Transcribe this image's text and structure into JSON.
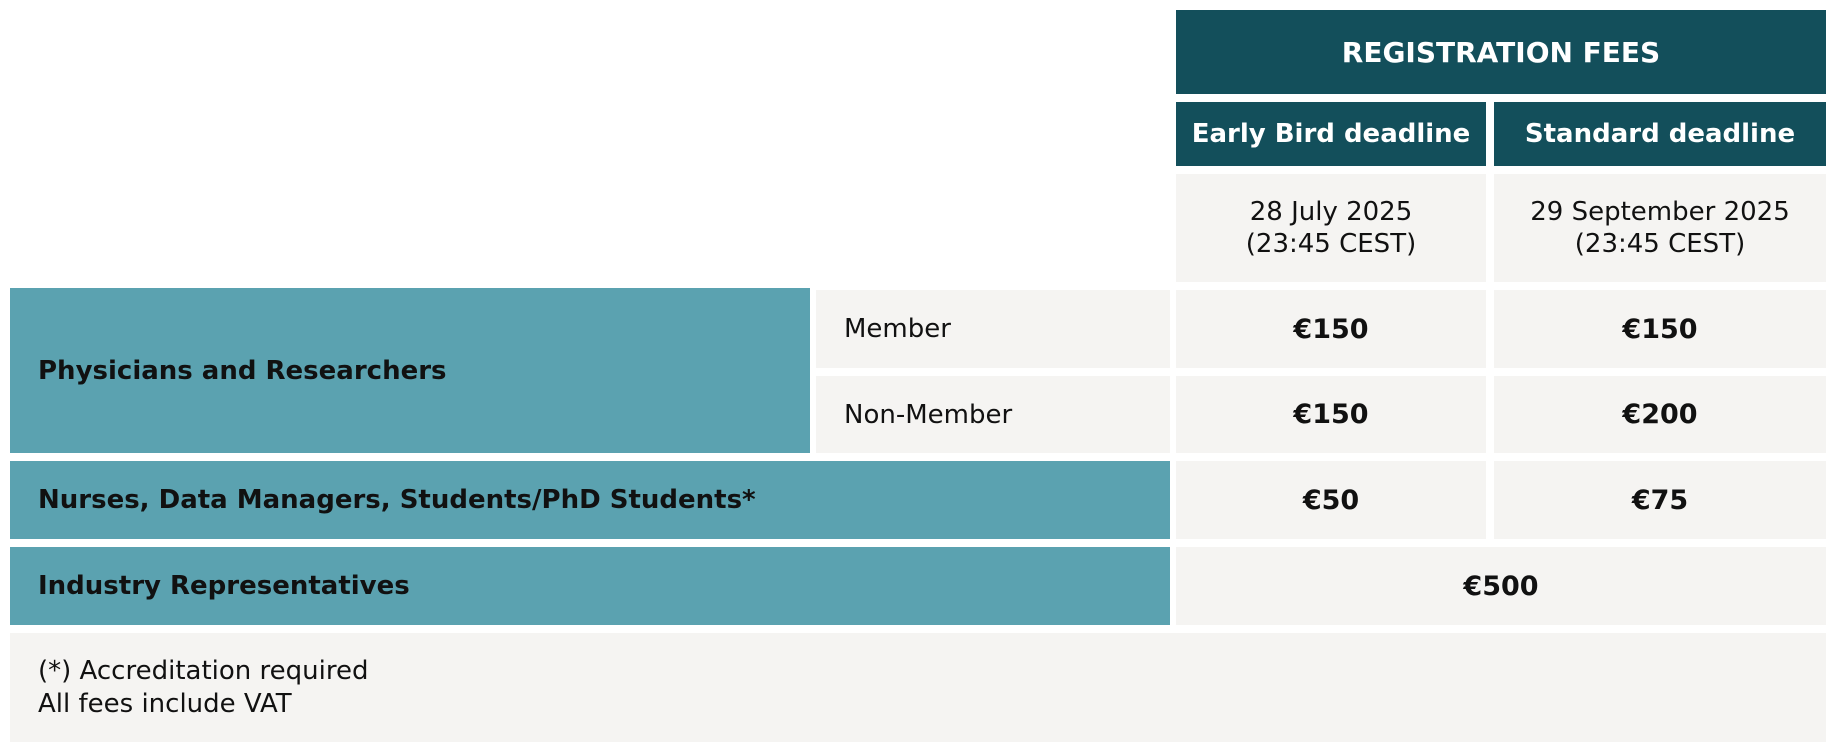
{
  "header": {
    "title": "REGISTRATION FEES",
    "columns": [
      {
        "label": "Early Bird deadline",
        "date": "28 July 2025",
        "time": "(23:45 CEST)"
      },
      {
        "label": "Standard deadline",
        "date": "29 September 2025",
        "time": "(23:45 CEST)"
      }
    ]
  },
  "rows": [
    {
      "category": "Physicians and Researchers",
      "subrows": [
        {
          "label": "Member",
          "early": "€150",
          "standard": "€150"
        },
        {
          "label": "Non-Member",
          "early": "€150",
          "standard": "€200"
        }
      ]
    },
    {
      "category": "Nurses, Data Managers, Students/PhD Students*",
      "early": "€50",
      "standard": "€75"
    },
    {
      "category": "Industry Representatives",
      "price": "€500"
    }
  ],
  "footnotes": [
    "(*) Accreditation required",
    "All fees include VAT"
  ],
  "colors": {
    "dark_header": "#134f5b",
    "teal": "#5ba2b0",
    "light_cell": "#f5f4f2"
  }
}
